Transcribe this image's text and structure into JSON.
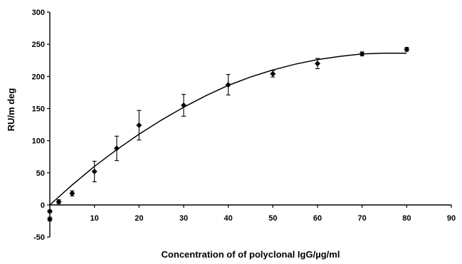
{
  "chart_data": {
    "type": "scatter",
    "title": "",
    "xlabel": "Concentration of of polyclonal IgG/µg/ml",
    "ylabel": "RU/m deg",
    "xlim": [
      0,
      90
    ],
    "ylim": [
      -50,
      300
    ],
    "x_ticks": [
      0,
      10,
      20,
      30,
      40,
      50,
      60,
      70,
      80,
      90
    ],
    "y_ticks": [
      -50,
      0,
      50,
      100,
      150,
      200,
      250,
      300
    ],
    "x_tick_labels": [
      "0",
      "10",
      "20",
      "30",
      "40",
      "50",
      "60",
      "70",
      "80",
      "90"
    ],
    "y_tick_labels": [
      "-50",
      "0",
      "50",
      "100",
      "150",
      "200",
      "250",
      "300"
    ],
    "grid": false,
    "legend": "none",
    "marker_color": "#000000",
    "series": [
      {
        "points": [
          {
            "x": 0,
            "y": -10,
            "err": 2
          },
          {
            "x": 0,
            "y": -22,
            "err": 3
          },
          {
            "x": 2,
            "y": 5,
            "err": 3
          },
          {
            "x": 5,
            "y": 18,
            "err": 4
          },
          {
            "x": 10,
            "y": 52,
            "err": 16
          },
          {
            "x": 15,
            "y": 88,
            "err": 19
          },
          {
            "x": 20,
            "y": 124,
            "err": 23
          },
          {
            "x": 30,
            "y": 155,
            "err": 17
          },
          {
            "x": 40,
            "y": 187,
            "err": 16
          },
          {
            "x": 50,
            "y": 204,
            "err": 5
          },
          {
            "x": 60,
            "y": 220,
            "err": 8
          },
          {
            "x": 70,
            "y": 235,
            "err": 3
          },
          {
            "x": 80,
            "y": 242,
            "err": 3
          }
        ]
      }
    ],
    "trendline": {
      "type": "polynomial",
      "x": [
        0,
        5,
        10,
        15,
        20,
        25,
        30,
        35,
        40,
        45,
        50,
        55,
        60,
        65,
        70,
        75,
        80
      ],
      "y": [
        0,
        31,
        60,
        86,
        110,
        132,
        152,
        170,
        186,
        199,
        210,
        219,
        226,
        231,
        235,
        236,
        236
      ]
    }
  }
}
